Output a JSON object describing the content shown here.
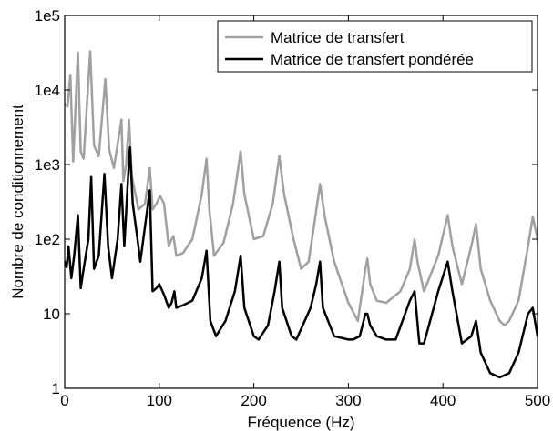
{
  "chart_data": {
    "type": "line",
    "title": "",
    "xlabel": "Fréquence (Hz)",
    "ylabel": "Nombre de conditionnement",
    "xlim": [
      0,
      500
    ],
    "ylim": [
      1,
      100000
    ],
    "yscale": "log",
    "grid": false,
    "legend_position": "top-right",
    "x_ticks": [
      0,
      100,
      200,
      300,
      400,
      500
    ],
    "x_tick_labels": [
      "0",
      "100",
      "200",
      "300",
      "400",
      "500"
    ],
    "y_ticks": [
      1,
      10,
      100,
      1000,
      10000,
      100000
    ],
    "y_tick_labels": [
      "1",
      "10",
      "1e2",
      "1e3",
      "1e4",
      "1e5"
    ],
    "series": [
      {
        "name": "Matrice de transfert",
        "color": "#a0a0a0",
        "points": [
          [
            0,
            6500
          ],
          [
            3,
            6000
          ],
          [
            6,
            16000
          ],
          [
            9,
            1100
          ],
          [
            14,
            32000
          ],
          [
            17,
            1500
          ],
          [
            20,
            1200
          ],
          [
            27,
            33000
          ],
          [
            31,
            1800
          ],
          [
            36,
            1300
          ],
          [
            43,
            14000
          ],
          [
            47,
            1600
          ],
          [
            52,
            900
          ],
          [
            60,
            4000
          ],
          [
            62,
            600
          ],
          [
            65,
            1000
          ],
          [
            68,
            4000
          ],
          [
            71,
            700
          ],
          [
            78,
            250
          ],
          [
            85,
            300
          ],
          [
            90,
            900
          ],
          [
            93,
            250
          ],
          [
            97,
            300
          ],
          [
            101,
            380
          ],
          [
            105,
            300
          ],
          [
            110,
            80
          ],
          [
            113,
            100
          ],
          [
            115,
            110
          ],
          [
            118,
            60
          ],
          [
            125,
            65
          ],
          [
            135,
            100
          ],
          [
            145,
            400
          ],
          [
            150,
            1200
          ],
          [
            153,
            250
          ],
          [
            158,
            60
          ],
          [
            168,
            90
          ],
          [
            178,
            300
          ],
          [
            186,
            1500
          ],
          [
            190,
            400
          ],
          [
            200,
            100
          ],
          [
            210,
            110
          ],
          [
            220,
            300
          ],
          [
            227,
            1300
          ],
          [
            232,
            400
          ],
          [
            242,
            100
          ],
          [
            250,
            40
          ],
          [
            258,
            50
          ],
          [
            265,
            200
          ],
          [
            270,
            550
          ],
          [
            275,
            200
          ],
          [
            285,
            50
          ],
          [
            300,
            14
          ],
          [
            310,
            8
          ],
          [
            318,
            40
          ],
          [
            320,
            55
          ],
          [
            323,
            25
          ],
          [
            330,
            15
          ],
          [
            340,
            14
          ],
          [
            355,
            20
          ],
          [
            365,
            40
          ],
          [
            370,
            100
          ],
          [
            373,
            50
          ],
          [
            380,
            20
          ],
          [
            395,
            60
          ],
          [
            405,
            210
          ],
          [
            410,
            80
          ],
          [
            420,
            25
          ],
          [
            430,
            80
          ],
          [
            435,
            160
          ],
          [
            440,
            40
          ],
          [
            450,
            15
          ],
          [
            460,
            8
          ],
          [
            465,
            7
          ],
          [
            470,
            8
          ],
          [
            480,
            15
          ],
          [
            490,
            80
          ],
          [
            495,
            200
          ],
          [
            500,
            100
          ],
          [
            505,
            30
          ],
          [
            510,
            30
          ]
        ]
      },
      {
        "name": "Matrice de transfert pondérée",
        "color": "#000000",
        "points": [
          [
            0,
            50
          ],
          [
            2,
            42
          ],
          [
            4,
            80
          ],
          [
            7,
            30
          ],
          [
            10,
            60
          ],
          [
            14,
            210
          ],
          [
            17,
            22
          ],
          [
            20,
            40
          ],
          [
            25,
            100
          ],
          [
            28,
            680
          ],
          [
            31,
            40
          ],
          [
            36,
            60
          ],
          [
            42,
            750
          ],
          [
            46,
            80
          ],
          [
            50,
            30
          ],
          [
            56,
            100
          ],
          [
            60,
            550
          ],
          [
            63,
            80
          ],
          [
            67,
            650
          ],
          [
            69,
            1700
          ],
          [
            72,
            300
          ],
          [
            77,
            100
          ],
          [
            80,
            50
          ],
          [
            85,
            150
          ],
          [
            90,
            450
          ],
          [
            93,
            20
          ],
          [
            97,
            22
          ],
          [
            100,
            25
          ],
          [
            105,
            18
          ],
          [
            110,
            12
          ],
          [
            113,
            14
          ],
          [
            116,
            20
          ],
          [
            118,
            12
          ],
          [
            125,
            13
          ],
          [
            135,
            15
          ],
          [
            145,
            30
          ],
          [
            150,
            70
          ],
          [
            154,
            8
          ],
          [
            160,
            5
          ],
          [
            170,
            8
          ],
          [
            180,
            20
          ],
          [
            186,
            60
          ],
          [
            190,
            12
          ],
          [
            200,
            5
          ],
          [
            205,
            4.5
          ],
          [
            215,
            7
          ],
          [
            222,
            20
          ],
          [
            227,
            50
          ],
          [
            230,
            12
          ],
          [
            240,
            5
          ],
          [
            245,
            4.5
          ],
          [
            260,
            12
          ],
          [
            266,
            25
          ],
          [
            270,
            50
          ],
          [
            273,
            12
          ],
          [
            285,
            5
          ],
          [
            300,
            4.5
          ],
          [
            305,
            4.5
          ],
          [
            312,
            5
          ],
          [
            318,
            10
          ],
          [
            320,
            10
          ],
          [
            323,
            7
          ],
          [
            330,
            5
          ],
          [
            340,
            4.5
          ],
          [
            350,
            4.5
          ],
          [
            365,
            15
          ],
          [
            370,
            20
          ],
          [
            375,
            4
          ],
          [
            380,
            4
          ],
          [
            395,
            20
          ],
          [
            405,
            50
          ],
          [
            410,
            20
          ],
          [
            420,
            4
          ],
          [
            430,
            5
          ],
          [
            435,
            8
          ],
          [
            440,
            3
          ],
          [
            450,
            1.6
          ],
          [
            460,
            1.4
          ],
          [
            470,
            1.6
          ],
          [
            480,
            3
          ],
          [
            490,
            10
          ],
          [
            495,
            12
          ],
          [
            500,
            5
          ],
          [
            510,
            5
          ]
        ]
      }
    ]
  }
}
